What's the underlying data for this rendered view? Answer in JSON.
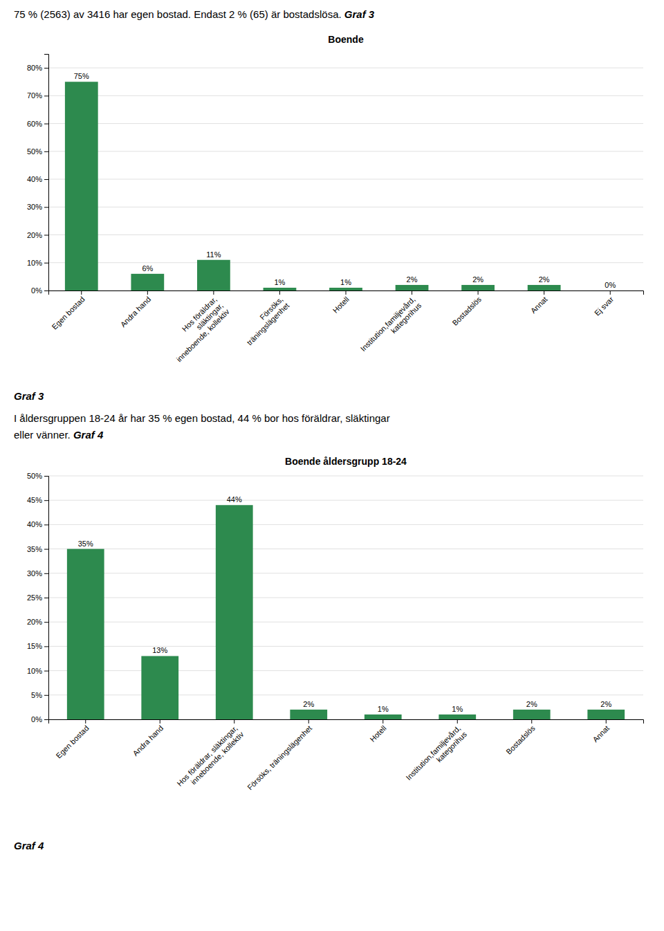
{
  "chart_data": [
    {
      "type": "bar",
      "title": "Boende",
      "categories": [
        "Egen bostad",
        "Andra hand",
        "Hos föräldrar,\nsläktingar,\ninneboende, kollektiv",
        "Försöks,\nträningslägenhet",
        "Hotell",
        "Institution,familjevård,\nkategorihus",
        "Bostadslös",
        "Annat",
        "Ej svar"
      ],
      "values": [
        75,
        6,
        11,
        1,
        1,
        2,
        2,
        2,
        0
      ],
      "value_labels": [
        "75%",
        "6%",
        "11%",
        "1%",
        "1%",
        "2%",
        "2%",
        "2%",
        "0%"
      ],
      "data_labels": true,
      "color": "#2d8a4e",
      "ylim": [
        0,
        85
      ],
      "yticks": [
        {
          "value": 0,
          "label": "0%"
        },
        {
          "value": 10,
          "label": "10%"
        },
        {
          "value": 20,
          "label": "20%"
        },
        {
          "value": 30,
          "label": "30%"
        },
        {
          "value": 40,
          "label": "40%"
        },
        {
          "value": 50,
          "label": "50%"
        },
        {
          "value": 60,
          "label": "60%"
        },
        {
          "value": 70,
          "label": "70%"
        },
        {
          "value": 80,
          "label": "80%"
        }
      ],
      "grid": true,
      "annotations": [
        "75 % (2563) av 3416 har egen bostad. Endast 2 % (65) är bostadslösa. ",
        "Graf 3",
        "Graf 3"
      ]
    },
    {
      "type": "bar",
      "title": "Boende åldersgrupp 18-24",
      "categories": [
        "Egen bostad",
        "Andra hand",
        "Hos föräldrar, släktingar,\ninneboende, kollektiv",
        "Försöks, träningslägenhet",
        "Hotell",
        "Institution,familjevård,\nkategorihus",
        "Bostadslös",
        "Annat"
      ],
      "values": [
        35,
        13,
        44,
        2,
        1,
        1,
        2,
        2
      ],
      "value_labels": [
        "35%",
        "13%",
        "44%",
        "2%",
        "1%",
        "1%",
        "2%",
        "2%"
      ],
      "data_labels": true,
      "color": "#2d8a4e",
      "ylim": [
        0,
        50
      ],
      "yticks": [
        {
          "value": 0,
          "label": "0%"
        },
        {
          "value": 5,
          "label": "5%"
        },
        {
          "value": 10,
          "label": "10%"
        },
        {
          "value": 15,
          "label": "15%"
        },
        {
          "value": 20,
          "label": "20%"
        },
        {
          "value": 25,
          "label": "25%"
        },
        {
          "value": 30,
          "label": "30%"
        },
        {
          "value": 35,
          "label": "35%"
        },
        {
          "value": 40,
          "label": "40%"
        },
        {
          "value": 45,
          "label": "45%"
        },
        {
          "value": 50,
          "label": "50%"
        }
      ],
      "grid": true,
      "annotations": [
        "I åldersgruppen 18-24 år har 35 % egen bostad, 44 % bor hos föräldrar, släktingar",
        "eller vänner. ",
        "Graf 4",
        "Graf 4"
      ]
    }
  ]
}
